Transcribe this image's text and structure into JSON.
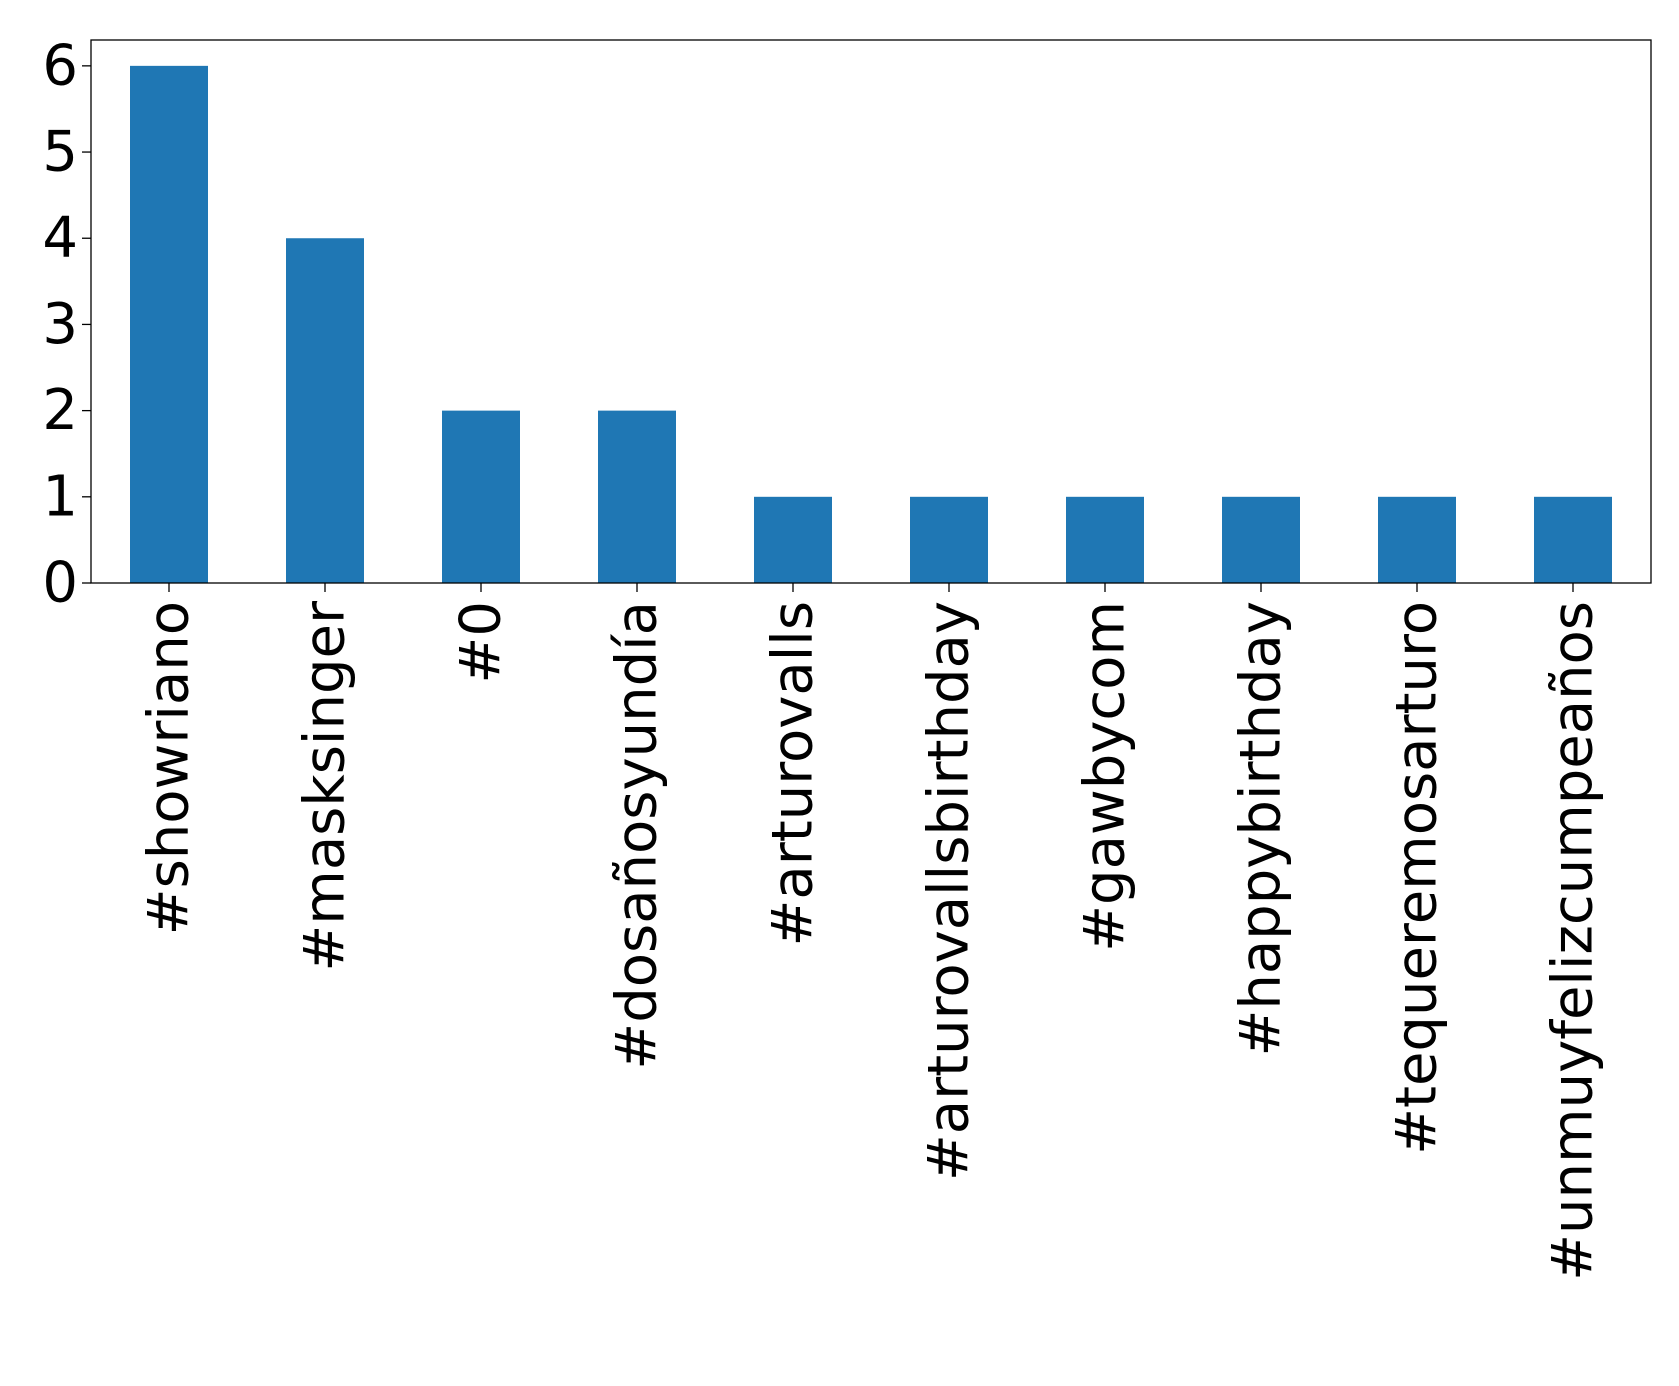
{
  "chart_data": {
    "type": "bar",
    "title": "",
    "xlabel": "",
    "ylabel": "",
    "categories": [
      "#showriano",
      "#masksinger",
      "#0",
      "#dosañosyundía",
      "#arturovalls",
      "#arturovallsbirthday",
      "#gawbycom",
      "#happybirthday",
      "#tequeremosarturo",
      "#unmuyfelizcumpeaños"
    ],
    "values": [
      6,
      4,
      2,
      2,
      1,
      1,
      1,
      1,
      1,
      1
    ],
    "ylim": [
      0,
      6.3
    ],
    "yticks": [
      0,
      1,
      2,
      3,
      4,
      5,
      6
    ],
    "grid": false,
    "legend": "none",
    "bar_color": "#1f77b4"
  }
}
